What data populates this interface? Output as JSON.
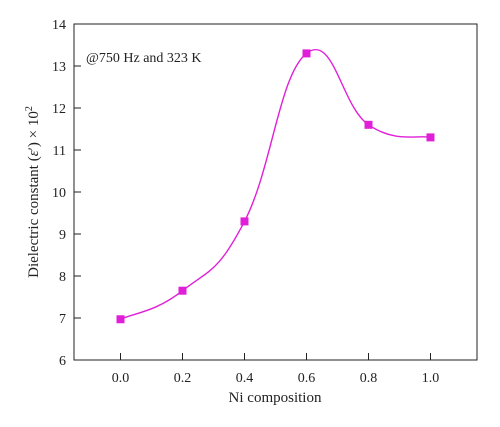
{
  "chart_data": {
    "type": "line",
    "title": "",
    "annotation": "@750 Hz and 323 K",
    "xlabel": "Ni composition",
    "ylabel": {
      "prefix": "Dielectric constant (",
      "symbol": "ε",
      "prime": "′",
      "suffix": ") × 10",
      "exponent": "2"
    },
    "xlim": [
      -0.15,
      1.15
    ],
    "ylim": [
      6,
      14
    ],
    "xticks": [
      0.0,
      0.2,
      0.4,
      0.6,
      0.8,
      1.0
    ],
    "xtick_labels": [
      "0.0",
      "0.2",
      "0.4",
      "0.6",
      "0.8",
      "1.0"
    ],
    "yticks": [
      6,
      7,
      8,
      9,
      10,
      11,
      12,
      13,
      14
    ],
    "ytick_labels": [
      "6",
      "7",
      "8",
      "9",
      "10",
      "11",
      "12",
      "13",
      "14"
    ],
    "grid": false,
    "series": [
      {
        "x": [
          0.0,
          0.2,
          0.4,
          0.6,
          0.8,
          1.0
        ],
        "values": [
          6.97,
          7.65,
          9.3,
          13.3,
          11.6,
          11.3
        ],
        "color": "#e020d8",
        "marker": "square",
        "smooth": true
      }
    ]
  }
}
